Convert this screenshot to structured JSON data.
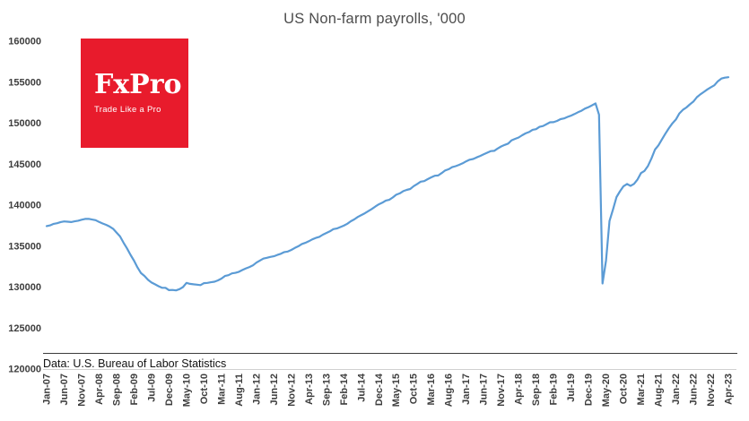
{
  "header": {
    "title": "US Non-farm payrolls, '000"
  },
  "logo": {
    "brand": "FxPro",
    "tagline": "Trade Like a Pro",
    "bg_color": "#e81b2c",
    "text_color": "#ffffff"
  },
  "footer": {
    "source_note": "Data: U.S. Bureau of Labor Statistics"
  },
  "chart_data": {
    "type": "line",
    "title": "US Non-farm payrolls, '000",
    "xlabel": "",
    "ylabel": "",
    "ylim": [
      120000,
      160000
    ],
    "y_ticks": [
      120000,
      125000,
      130000,
      135000,
      140000,
      145000,
      150000,
      155000,
      160000
    ],
    "grid": false,
    "legend": false,
    "line_color": "#5b9bd5",
    "x_tick_every": 5,
    "x_tick_labels": [
      "Jan-07",
      "Jun-07",
      "Nov-07",
      "Apr-08",
      "Sep-08",
      "Feb-09",
      "Jul-09",
      "Dec-09",
      "May-10",
      "Oct-10",
      "Mar-11",
      "Aug-11",
      "Jan-12",
      "Jun-12",
      "Nov-12",
      "Apr-13",
      "Sep-13",
      "Feb-14",
      "Jul-14",
      "Dec-14",
      "May-15",
      "Oct-15",
      "Mar-16",
      "Aug-16",
      "Jan-17",
      "Jun-17",
      "Nov-17",
      "Apr-18",
      "Sep-18",
      "Feb-19",
      "Jul-19",
      "Dec-19",
      "May-20",
      "Oct-20",
      "Mar-21",
      "Aug-21",
      "Jan-22",
      "Jun-22",
      "Nov-22",
      "Apr-23"
    ],
    "x_start": "Jan-07",
    "x_end": "Apr-23",
    "series": [
      {
        "name": "US Non-farm payrolls ('000)",
        "values": [
          137439,
          137529,
          137717,
          137794,
          137936,
          138013,
          137983,
          137936,
          138021,
          138101,
          138219,
          138317,
          138327,
          138243,
          138162,
          137947,
          137763,
          137598,
          137387,
          137112,
          136659,
          136187,
          135418,
          134716,
          133930,
          133219,
          132395,
          131710,
          131356,
          130888,
          130557,
          130341,
          130114,
          129916,
          129910,
          129627,
          129645,
          129595,
          129751,
          130002,
          130518,
          130396,
          130335,
          130293,
          130236,
          130477,
          130514,
          130585,
          130655,
          130823,
          131035,
          131357,
          131459,
          131670,
          131743,
          131865,
          132086,
          132285,
          132444,
          132640,
          132985,
          133231,
          133474,
          133570,
          133680,
          133760,
          133920,
          134070,
          134270,
          134340,
          134540,
          134780,
          134980,
          135260,
          135400,
          135600,
          135820,
          136000,
          136130,
          136390,
          136600,
          136800,
          137070,
          137150,
          137320,
          137500,
          137730,
          138030,
          138260,
          138560,
          138790,
          139010,
          139270,
          139530,
          139830,
          140100,
          140300,
          140560,
          140640,
          140930,
          141270,
          141430,
          141710,
          141860,
          141970,
          142320,
          142580,
          142860,
          142930,
          143170,
          143390,
          143580,
          143620,
          143910,
          144230,
          144380,
          144630,
          144750,
          144920,
          145100,
          145340,
          145540,
          145630,
          145820,
          146000,
          146200,
          146390,
          146590,
          146620,
          146910,
          147160,
          147340,
          147510,
          147910,
          148090,
          148250,
          148520,
          148750,
          148920,
          149190,
          149270,
          149550,
          149650,
          149880,
          150110,
          150120,
          150270,
          150490,
          150580,
          150760,
          150920,
          151120,
          151330,
          151520,
          151780,
          151960,
          152170,
          152420,
          151030,
          130440,
          133240,
          138070,
          139480,
          140980,
          141690,
          142310,
          142580,
          142350,
          142590,
          143130,
          143910,
          144180,
          144790,
          145700,
          146780,
          147300,
          148010,
          148720,
          149390,
          149980,
          150450,
          151190,
          151630,
          151910,
          152290,
          152630,
          153170,
          153520,
          153810,
          154120,
          154380,
          154620,
          155120,
          155440,
          155550,
          155610
        ]
      }
    ]
  }
}
